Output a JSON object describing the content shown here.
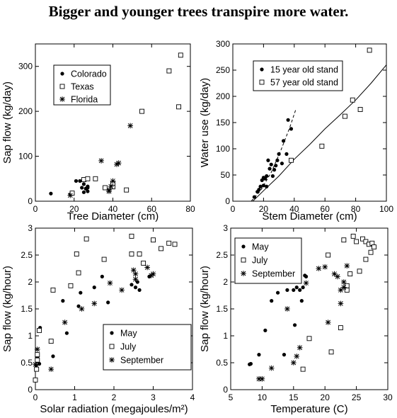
{
  "title": "Bigger and younger trees transpire more water.",
  "chart_data": [
    {
      "type": "scatter",
      "xlabel": "Tree Diameter (cm)",
      "ylabel": "Sap flow (kg/day)",
      "xlim": [
        0,
        80
      ],
      "ylim": [
        0,
        350
      ],
      "xticks": [
        0,
        20,
        40,
        60,
        80
      ],
      "yticks": [
        0,
        100,
        200,
        300
      ],
      "legend": "top-left",
      "series": [
        {
          "name": "Colorado",
          "marker": "dot",
          "points": [
            [
              8,
              17
            ],
            [
              18,
              15
            ],
            [
              21,
              45
            ],
            [
              23,
              45
            ],
            [
              24,
              30
            ],
            [
              25,
              20
            ],
            [
              25,
              38
            ],
            [
              26,
              28
            ],
            [
              27,
              22
            ],
            [
              27,
              30
            ],
            [
              27,
              33
            ]
          ]
        },
        {
          "name": "Texas",
          "marker": "square",
          "points": [
            [
              19,
              18
            ],
            [
              25,
              48
            ],
            [
              27,
              50
            ],
            [
              31,
              50
            ],
            [
              36,
              30
            ],
            [
              40,
              32
            ],
            [
              40,
              40
            ],
            [
              47,
              25
            ],
            [
              55,
              200
            ],
            [
              69,
              290
            ],
            [
              74,
              210
            ],
            [
              75,
              325
            ]
          ]
        },
        {
          "name": "Florida",
          "marker": "star",
          "points": [
            [
              18,
              13
            ],
            [
              34,
              90
            ],
            [
              38,
              22
            ],
            [
              38,
              25
            ],
            [
              39,
              33
            ],
            [
              40,
              45
            ],
            [
              42,
              82
            ],
            [
              43,
              85
            ],
            [
              49,
              168
            ]
          ]
        }
      ]
    },
    {
      "type": "scatter",
      "xlabel": "Stem Diameter (cm)",
      "ylabel": "Water use (kg/day)",
      "xlim": [
        0,
        100
      ],
      "ylim": [
        0,
        300
      ],
      "xticks": [
        0,
        20,
        40,
        60,
        80,
        100
      ],
      "yticks": [
        0,
        50,
        100,
        150,
        200,
        250,
        300
      ],
      "legend": "top-left",
      "series": [
        {
          "name": "15 year old stand",
          "marker": "dot",
          "points": [
            [
              14,
              8
            ],
            [
              16,
              18
            ],
            [
              17,
              22
            ],
            [
              18,
              28
            ],
            [
              19,
              40
            ],
            [
              20,
              30
            ],
            [
              20,
              45
            ],
            [
              21,
              43
            ],
            [
              22,
              28
            ],
            [
              22,
              48
            ],
            [
              23,
              78
            ],
            [
              24,
              62
            ],
            [
              25,
              70
            ],
            [
              26,
              48
            ],
            [
              27,
              60
            ],
            [
              28,
              68
            ],
            [
              29,
              78
            ],
            [
              30,
              90
            ],
            [
              32,
              72
            ],
            [
              33,
              115
            ],
            [
              35,
              90
            ],
            [
              36,
              155
            ],
            [
              38,
              138
            ]
          ]
        },
        {
          "name": "57 year old stand",
          "marker": "square",
          "points": [
            [
              38,
              78
            ],
            [
              58,
              105
            ],
            [
              73,
              162
            ],
            [
              78,
              193
            ],
            [
              83,
              175
            ],
            [
              89,
              288
            ]
          ]
        }
      ],
      "fits": [
        {
          "style": "dashed",
          "points": [
            [
              12,
              0
            ],
            [
              18,
              20
            ],
            [
              25,
              55
            ],
            [
              31,
              95
            ],
            [
              37,
              140
            ],
            [
              41,
              175
            ]
          ]
        },
        {
          "style": "solid",
          "points": [
            [
              13,
              0
            ],
            [
              20,
              20
            ],
            [
              30,
              48
            ],
            [
              40,
              80
            ],
            [
              50,
              108
            ],
            [
              60,
              138
            ],
            [
              70,
              165
            ],
            [
              80,
              193
            ],
            [
              90,
              225
            ],
            [
              100,
              260
            ]
          ]
        }
      ]
    },
    {
      "type": "scatter",
      "xlabel": "Solar radiation (megajoules/m²)",
      "ylabel": "Sap flow (kg/hour)",
      "xlim": [
        0,
        4
      ],
      "ylim": [
        0,
        3
      ],
      "xticks": [
        0,
        1,
        2,
        3,
        4
      ],
      "yticks": [
        0,
        0.5,
        1,
        1.5,
        2,
        2.5,
        3
      ],
      "legend": "bottom-right",
      "series": [
        {
          "name": "May",
          "marker": "dot",
          "points": [
            [
              0.02,
              0.45
            ],
            [
              0.05,
              0.6
            ],
            [
              0.1,
              0.48
            ],
            [
              0.12,
              1.15
            ],
            [
              0.45,
              0.62
            ],
            [
              0.7,
              1.65
            ],
            [
              0.8,
              1.05
            ],
            [
              1.1,
              1.55
            ],
            [
              1.15,
              1.8
            ],
            [
              1.5,
              1.9
            ],
            [
              1.7,
              2.1
            ],
            [
              1.85,
              1.62
            ],
            [
              2.45,
              1.95
            ],
            [
              2.55,
              1.9
            ],
            [
              2.6,
              2.0
            ],
            [
              2.65,
              1.85
            ],
            [
              2.9,
              2.1
            ]
          ]
        },
        {
          "name": "July",
          "marker": "square",
          "points": [
            [
              0.0,
              0.18
            ],
            [
              0.03,
              0.38
            ],
            [
              0.05,
              0.55
            ],
            [
              0.05,
              0.65
            ],
            [
              0.1,
              1.1
            ],
            [
              0.4,
              0.9
            ],
            [
              0.45,
              1.85
            ],
            [
              0.9,
              1.93
            ],
            [
              1.05,
              2.52
            ],
            [
              1.1,
              2.17
            ],
            [
              1.3,
              2.8
            ],
            [
              1.75,
              2.42
            ],
            [
              2.45,
              2.52
            ],
            [
              2.45,
              2.85
            ],
            [
              2.65,
              2.52
            ],
            [
              2.75,
              2.35
            ],
            [
              3.0,
              2.78
            ],
            [
              3.2,
              2.62
            ],
            [
              3.4,
              2.72
            ],
            [
              3.55,
              2.7
            ]
          ]
        },
        {
          "name": "September",
          "marker": "star",
          "points": [
            [
              0.0,
              0.47
            ],
            [
              0.05,
              0.75
            ],
            [
              0.4,
              0.38
            ],
            [
              0.75,
              1.25
            ],
            [
              1.18,
              1.5
            ],
            [
              1.5,
              1.6
            ],
            [
              1.9,
              1.98
            ],
            [
              2.2,
              1.85
            ],
            [
              2.5,
              2.22
            ],
            [
              2.55,
              2.15
            ],
            [
              2.55,
              2.05
            ],
            [
              2.85,
              2.27
            ],
            [
              2.95,
              2.12
            ],
            [
              3.0,
              2.15
            ]
          ]
        }
      ]
    },
    {
      "type": "scatter",
      "xlabel": "Temperature (C)",
      "ylabel": "Sap flow (kg/hour)",
      "xlim": [
        5,
        30
      ],
      "ylim": [
        0,
        3
      ],
      "xticks": [
        5,
        10,
        15,
        20,
        25,
        30
      ],
      "yticks": [
        0,
        0.5,
        1,
        1.5,
        2,
        2.5,
        3
      ],
      "legend": "top-left",
      "series": [
        {
          "name": "May",
          "marker": "dot",
          "points": [
            [
              8,
              0.47
            ],
            [
              8.2,
              0.48
            ],
            [
              9.5,
              0.65
            ],
            [
              10.5,
              1.1
            ],
            [
              11.5,
              1.65
            ],
            [
              12.5,
              1.8
            ],
            [
              13.5,
              0.65
            ],
            [
              14,
              1.85
            ],
            [
              15,
              1.85
            ],
            [
              15.2,
              1.2
            ],
            [
              15.5,
              1.9
            ],
            [
              16,
              1.85
            ],
            [
              16.3,
              1.65
            ],
            [
              16.5,
              1.9
            ],
            [
              16.8,
              2.12
            ],
            [
              17,
              2.1
            ]
          ]
        },
        {
          "name": "July",
          "marker": "square",
          "points": [
            [
              16.5,
              0.38
            ],
            [
              17.5,
              0.95
            ],
            [
              20.5,
              2.5
            ],
            [
              21,
              0.7
            ],
            [
              22.5,
              1.15
            ],
            [
              23,
              2.78
            ],
            [
              23.5,
              1.85
            ],
            [
              23.5,
              1.93
            ],
            [
              24,
              2.15
            ],
            [
              24.5,
              2.85
            ],
            [
              25,
              2.75
            ],
            [
              25.5,
              2.2
            ],
            [
              26,
              2.8
            ],
            [
              26.5,
              2.42
            ],
            [
              26.5,
              2.75
            ],
            [
              27,
              2.7
            ],
            [
              27.3,
              2.55
            ],
            [
              27.5,
              2.72
            ],
            [
              27.8,
              2.65
            ]
          ]
        },
        {
          "name": "September",
          "marker": "star",
          "points": [
            [
              9.5,
              0.2
            ],
            [
              10,
              0.2
            ],
            [
              11.5,
              0.4
            ],
            [
              14,
              1.5
            ],
            [
              15,
              0.5
            ],
            [
              15.5,
              0.62
            ],
            [
              16,
              0.78
            ],
            [
              17,
              1.98
            ],
            [
              19,
              2.25
            ],
            [
              20,
              2.28
            ],
            [
              20.5,
              1.25
            ],
            [
              21.5,
              2.15
            ],
            [
              22,
              2.1
            ],
            [
              22.5,
              1.85
            ],
            [
              22.5,
              1.6
            ],
            [
              23,
              2.0
            ],
            [
              23,
              1.9
            ],
            [
              23.5,
              2.3
            ]
          ]
        }
      ]
    }
  ]
}
